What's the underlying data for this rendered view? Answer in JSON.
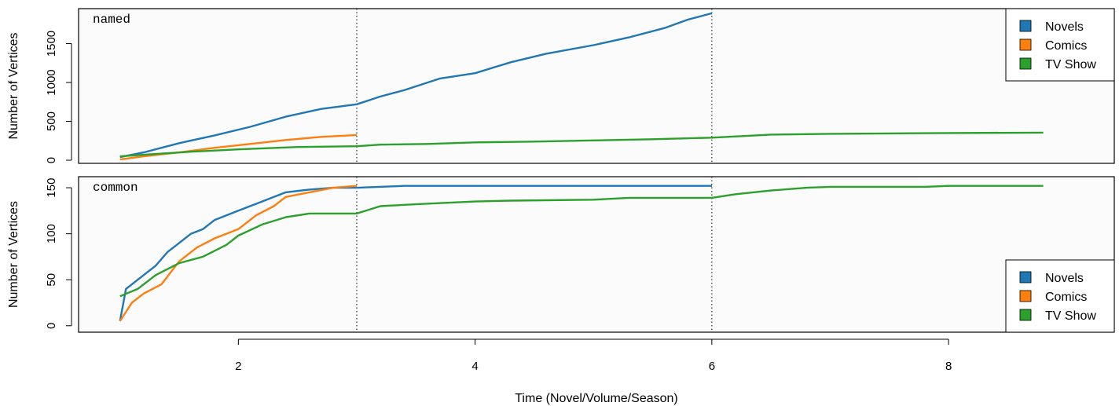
{
  "xlabel": "Time (Novel/Volume/Season)",
  "x_ticks": [
    2,
    4,
    6,
    8
  ],
  "x_range": [
    0.65,
    9.4
  ],
  "vlines": [
    3,
    6
  ],
  "colors": {
    "Novels": "#1f77b4",
    "Comics": "#ff7f0e",
    "TV Show": "#2ca02c"
  },
  "chart_data": [
    {
      "type": "line",
      "panel_label": "named",
      "ylabel": "Number of Vertices",
      "ylim": [
        -40,
        1950
      ],
      "y_ticks": [
        0,
        500,
        1000,
        1500
      ],
      "legend": {
        "position": "top-right",
        "entries": [
          "Novels",
          "Comics",
          "TV Show"
        ]
      },
      "series": [
        {
          "name": "Novels",
          "points": [
            [
              1.0,
              40
            ],
            [
              1.2,
              100
            ],
            [
              1.5,
              220
            ],
            [
              1.8,
              320
            ],
            [
              2.1,
              430
            ],
            [
              2.4,
              560
            ],
            [
              2.7,
              660
            ],
            [
              3.0,
              720
            ],
            [
              3.2,
              820
            ],
            [
              3.4,
              900
            ],
            [
              3.7,
              1050
            ],
            [
              4.0,
              1120
            ],
            [
              4.3,
              1260
            ],
            [
              4.6,
              1370
            ],
            [
              5.0,
              1480
            ],
            [
              5.3,
              1580
            ],
            [
              5.6,
              1700
            ],
            [
              5.8,
              1810
            ],
            [
              6.0,
              1890
            ]
          ]
        },
        {
          "name": "Comics",
          "points": [
            [
              1.0,
              10
            ],
            [
              1.2,
              50
            ],
            [
              1.5,
              100
            ],
            [
              1.8,
              160
            ],
            [
              2.1,
              210
            ],
            [
              2.4,
              260
            ],
            [
              2.7,
              300
            ],
            [
              3.0,
              325
            ]
          ]
        },
        {
          "name": "TV Show",
          "points": [
            [
              1.0,
              50
            ],
            [
              1.3,
              80
            ],
            [
              1.6,
              110
            ],
            [
              2.0,
              140
            ],
            [
              2.5,
              170
            ],
            [
              3.0,
              180
            ],
            [
              3.2,
              200
            ],
            [
              3.6,
              210
            ],
            [
              4.0,
              230
            ],
            [
              4.5,
              240
            ],
            [
              5.0,
              255
            ],
            [
              5.5,
              270
            ],
            [
              6.0,
              290
            ],
            [
              6.5,
              330
            ],
            [
              7.0,
              340
            ],
            [
              7.5,
              345
            ],
            [
              8.0,
              350
            ],
            [
              8.8,
              355
            ]
          ]
        }
      ]
    },
    {
      "type": "line",
      "panel_label": "common",
      "ylabel": "Number of Vertices",
      "ylim": [
        -7,
        162
      ],
      "y_ticks": [
        0,
        50,
        100,
        150
      ],
      "legend": {
        "position": "bottom-right",
        "entries": [
          "Novels",
          "Comics",
          "TV Show"
        ]
      },
      "series": [
        {
          "name": "Novels",
          "points": [
            [
              1.0,
              5
            ],
            [
              1.05,
              40
            ],
            [
              1.15,
              50
            ],
            [
              1.3,
              65
            ],
            [
              1.4,
              80
            ],
            [
              1.5,
              90
            ],
            [
              1.6,
              100
            ],
            [
              1.7,
              105
            ],
            [
              1.8,
              115
            ],
            [
              2.0,
              125
            ],
            [
              2.2,
              135
            ],
            [
              2.4,
              145
            ],
            [
              2.6,
              148
            ],
            [
              2.8,
              150
            ],
            [
              3.0,
              150
            ],
            [
              3.4,
              152
            ],
            [
              6.0,
              152
            ]
          ]
        },
        {
          "name": "Comics",
          "points": [
            [
              1.0,
              5
            ],
            [
              1.1,
              25
            ],
            [
              1.2,
              35
            ],
            [
              1.35,
              45
            ],
            [
              1.5,
              70
            ],
            [
              1.65,
              85
            ],
            [
              1.8,
              95
            ],
            [
              2.0,
              105
            ],
            [
              2.15,
              120
            ],
            [
              2.3,
              130
            ],
            [
              2.4,
              140
            ],
            [
              2.6,
              145
            ],
            [
              2.8,
              150
            ],
            [
              3.0,
              152
            ]
          ]
        },
        {
          "name": "TV Show",
          "points": [
            [
              1.0,
              32
            ],
            [
              1.15,
              40
            ],
            [
              1.3,
              55
            ],
            [
              1.5,
              68
            ],
            [
              1.7,
              75
            ],
            [
              1.9,
              88
            ],
            [
              2.0,
              98
            ],
            [
              2.2,
              110
            ],
            [
              2.4,
              118
            ],
            [
              2.6,
              122
            ],
            [
              3.0,
              122
            ],
            [
              3.2,
              130
            ],
            [
              3.5,
              132
            ],
            [
              4.0,
              135
            ],
            [
              4.3,
              136
            ],
            [
              5.0,
              137
            ],
            [
              5.3,
              139
            ],
            [
              6.0,
              139
            ],
            [
              6.2,
              143
            ],
            [
              6.5,
              147
            ],
            [
              6.8,
              150
            ],
            [
              7.0,
              151
            ],
            [
              7.8,
              151
            ],
            [
              8.0,
              152
            ],
            [
              8.8,
              152
            ]
          ]
        }
      ]
    }
  ]
}
